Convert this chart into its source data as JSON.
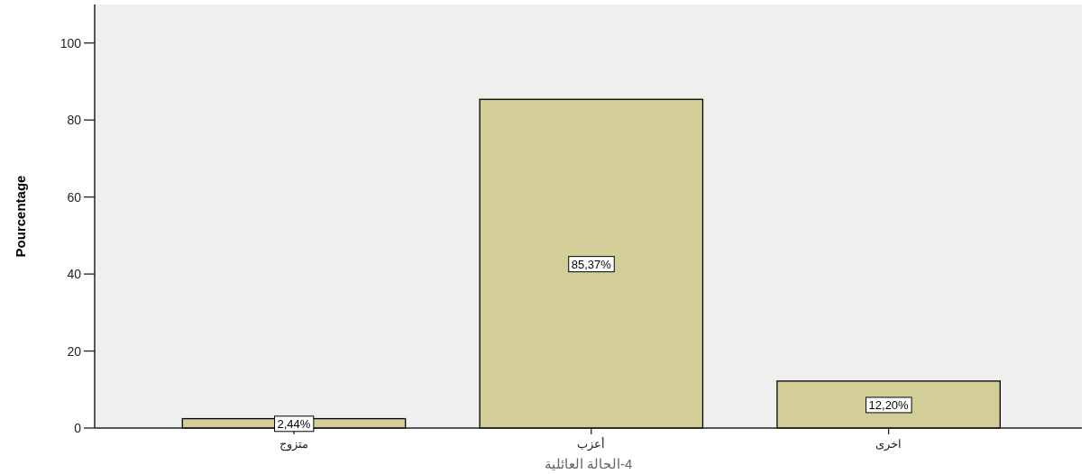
{
  "chart_data": {
    "type": "bar",
    "xlabel": "4-الحالة العائلية",
    "ylabel": "Pourcentage",
    "categories": [
      "متزوج",
      "أعزب",
      "اخرى"
    ],
    "values": [
      2.44,
      85.37,
      12.2
    ],
    "value_labels": [
      "2,44%",
      "85,37%",
      "12,20%"
    ],
    "color": "#d3ce97",
    "ylim": [
      0,
      110
    ],
    "yticks": [
      0,
      20,
      40,
      60,
      80,
      100
    ]
  }
}
